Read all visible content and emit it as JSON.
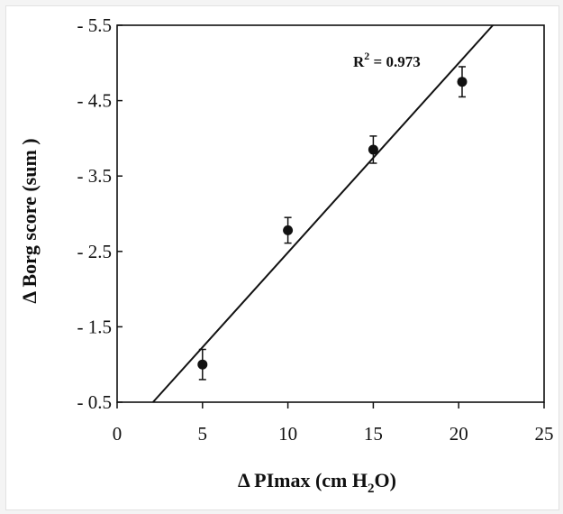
{
  "chart_data": {
    "type": "scatter",
    "xlabel": {
      "prefix": "Δ PImax (cm H",
      "sub": "2",
      "suffix": "O)"
    },
    "ylabel": "Δ Borg score (sum )",
    "xlim": [
      0,
      25
    ],
    "ylim": [
      0.5,
      5.5
    ],
    "x_ticks": [
      0,
      5,
      10,
      15,
      20,
      25
    ],
    "x_tick_labels": [
      "0",
      "5",
      "10",
      "15",
      "20",
      "25"
    ],
    "y_ticks": [
      0.5,
      1.5,
      2.5,
      3.5,
      4.5,
      5.5
    ],
    "y_tick_labels": [
      "- 0.5",
      "- 1.5",
      "- 2.5",
      "- 3.5",
      "- 4.5",
      "- 5.5"
    ],
    "grid": false,
    "points": [
      {
        "x": 5,
        "y": 1.0,
        "err_low": 0.2,
        "err_high": 0.2
      },
      {
        "x": 10,
        "y": 2.78,
        "err_low": 0.17,
        "err_high": 0.17
      },
      {
        "x": 15,
        "y": 3.85,
        "err_low": 0.18,
        "err_high": 0.18
      },
      {
        "x": 20.2,
        "y": 4.75,
        "err_low": 0.2,
        "err_high": 0.2
      }
    ],
    "fit_line": {
      "x": [
        2.1,
        22.0
      ],
      "y": [
        0.5,
        5.5
      ]
    },
    "annotation": {
      "main": "R",
      "sup": "2",
      "rest": " = 0.973"
    },
    "marker_color": "#111111",
    "line_color": "#111111"
  }
}
